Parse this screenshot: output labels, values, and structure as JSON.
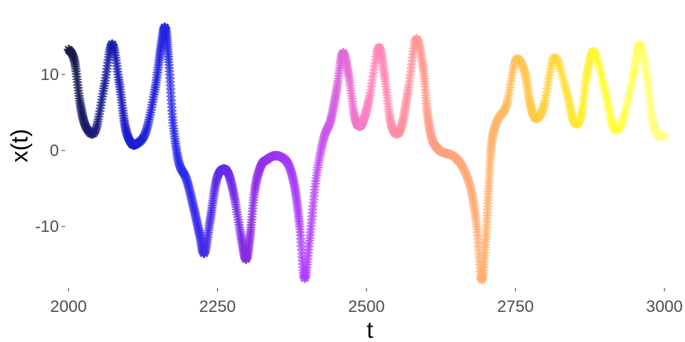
{
  "chart_data": {
    "type": "line",
    "title": "",
    "xlabel": "t",
    "ylabel": "x(t)",
    "xlim": [
      2000,
      3000
    ],
    "ylim": [
      -18,
      18
    ],
    "grid": false,
    "legend": "none",
    "x_ticks": [
      2000,
      2250,
      2500,
      2750,
      3000
    ],
    "x_tick_labels": [
      "2000",
      "2250",
      "2500",
      "2750",
      "3000"
    ],
    "y_ticks": [
      -10,
      0,
      10
    ],
    "y_tick_labels": [
      "-10",
      "0",
      "10"
    ],
    "marker": "asterisk",
    "color_gradient": [
      "#1a1a40",
      "#1c1ccf",
      "#2a2af0",
      "#8a2be2",
      "#b040ff",
      "#ff80c0",
      "#ff9a8a",
      "#ffb070",
      "#ffd040",
      "#ffff30",
      "#ffff90"
    ],
    "series": [
      {
        "x": [
          2000,
          2010,
          2020,
          2030,
          2045,
          2060,
          2073,
          2085,
          2095,
          2105,
          2115,
          2130,
          2145,
          2155,
          2162,
          2168,
          2175,
          2185,
          2198,
          2210,
          2220,
          2228,
          2238,
          2248,
          2258,
          2268,
          2278,
          2290,
          2298,
          2305,
          2313,
          2323,
          2333,
          2345,
          2358,
          2370,
          2380,
          2388,
          2396,
          2405,
          2415,
          2428,
          2440,
          2450,
          2460,
          2470,
          2480,
          2488,
          2495,
          2505,
          2520,
          2530,
          2540,
          2550,
          2560,
          2570,
          2583,
          2595,
          2602,
          2610,
          2620,
          2630,
          2645,
          2660,
          2675,
          2685,
          2693,
          2700,
          2705,
          2710,
          2720,
          2735,
          2750,
          2765,
          2775,
          2785,
          2798,
          2815,
          2835,
          2848,
          2860,
          2870,
          2882,
          2900,
          2915,
          2930,
          2948,
          2958,
          2970,
          2980,
          2990,
          3000
        ],
        "y": [
          13.3,
          11.8,
          6.0,
          3.0,
          2.6,
          8.5,
          14.0,
          9.0,
          3.2,
          1.0,
          0.9,
          2.5,
          8.0,
          13.5,
          16.2,
          12.0,
          4.0,
          -1.5,
          -3.8,
          -7.5,
          -11.0,
          -13.5,
          -9.0,
          -4.0,
          -2.5,
          -3.0,
          -6.0,
          -11.5,
          -14.3,
          -11.0,
          -5.0,
          -2.0,
          -1.2,
          -0.7,
          -0.9,
          -2.0,
          -5.0,
          -10.0,
          -16.8,
          -11.5,
          -4.0,
          1.5,
          4.0,
          8.0,
          12.8,
          10.0,
          4.5,
          3.2,
          4.0,
          7.0,
          13.5,
          10.0,
          4.0,
          2.2,
          3.5,
          8.0,
          14.6,
          11.0,
          5.0,
          1.5,
          0.2,
          -0.3,
          -0.7,
          -2.0,
          -5.0,
          -10.0,
          -17.0,
          -12.0,
          -5.0,
          1.0,
          4.0,
          6.0,
          11.8,
          10.5,
          6.0,
          4.2,
          6.0,
          12.2,
          8.0,
          3.8,
          4.5,
          10.0,
          13.0,
          8.0,
          3.0,
          4.0,
          10.0,
          13.9,
          10.0,
          4.0,
          2.0,
          2.0
        ]
      }
    ]
  }
}
